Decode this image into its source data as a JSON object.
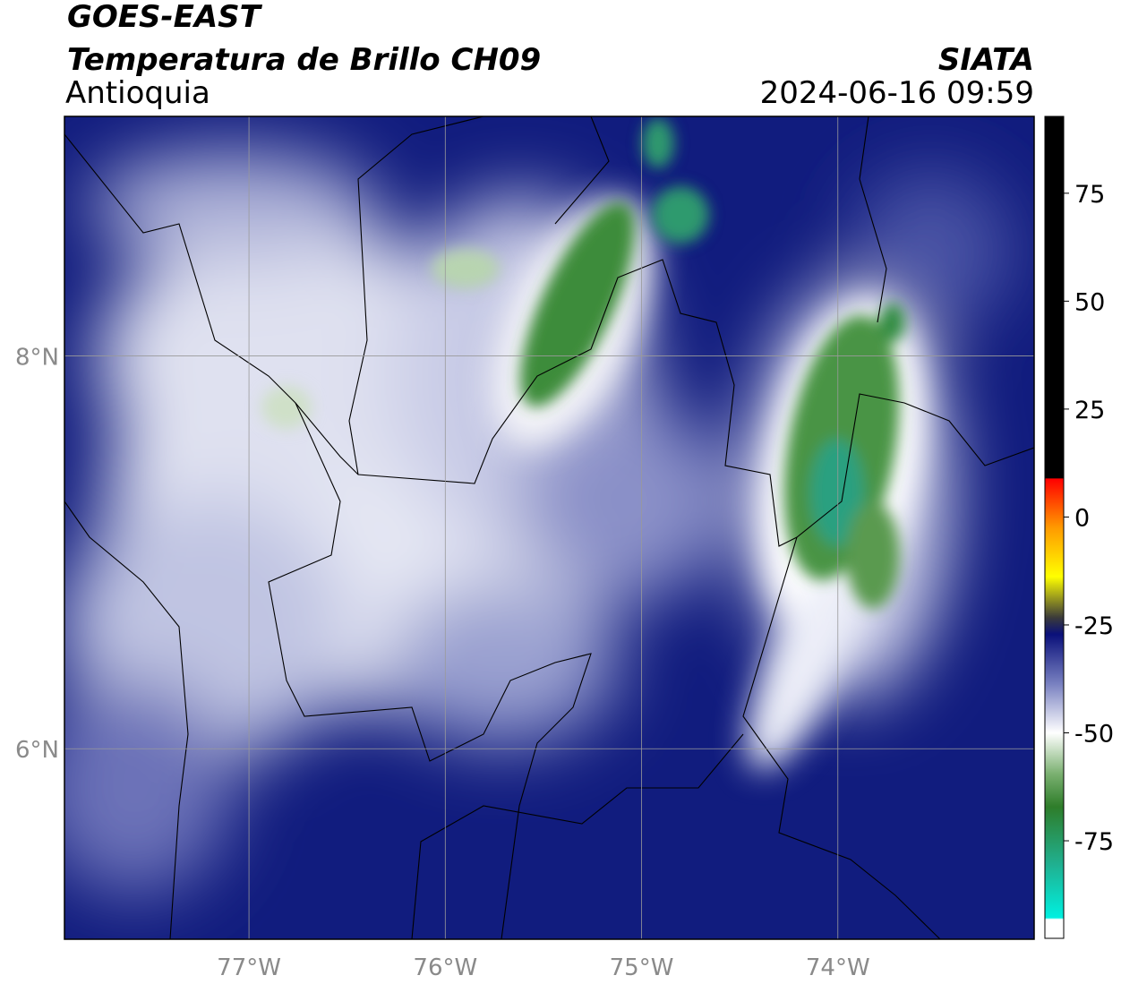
{
  "map": {
    "title": "GOES-EAST",
    "subtitle": "Temperatura de Brillo CH09",
    "region": "Antioquia",
    "source": "SIATA",
    "datetime": "2024-06-16 09:59",
    "xlim": [
      -77.94,
      -73.0
    ],
    "ylim": [
      5.03,
      9.22
    ],
    "xticks": [
      {
        "value": -77,
        "label": "77°W"
      },
      {
        "value": -76,
        "label": "76°W"
      },
      {
        "value": -75,
        "label": "75°W"
      },
      {
        "value": -74,
        "label": "74°W"
      }
    ],
    "yticks": [
      {
        "value": 8,
        "label": "8°N"
      },
      {
        "value": 6,
        "label": "6°N"
      }
    ],
    "grid": true,
    "colorbar": {
      "lim": [
        -97.6,
        92.8
      ],
      "ticks": [
        75,
        50,
        25,
        0,
        -25,
        -50,
        -75
      ]
    }
  }
}
